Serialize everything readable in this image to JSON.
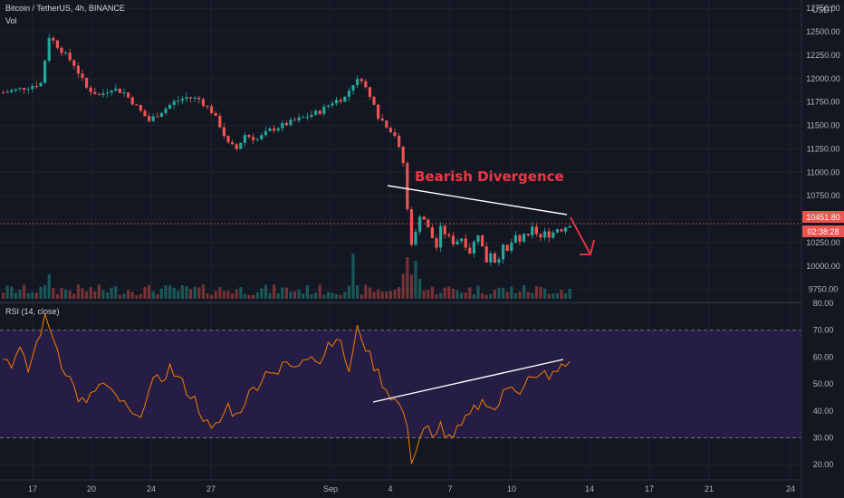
{
  "header": {
    "symbol": "Bitcoin / TetherUS, 4h, BINANCE",
    "vol_label": "Vol",
    "currency": "USDT"
  },
  "rsi": {
    "label": "RSI (14, close)"
  },
  "colors": {
    "background": "#131722",
    "up": "#26a69a",
    "down": "#ef5350",
    "rsi_line": "#f57c00",
    "rsi_band": "#2a1e4a",
    "annotation": "#f23645",
    "trendline": "#ffffff"
  },
  "chart_data": [
    {
      "type": "candlestick",
      "x_tick_labels": [
        "17",
        "20",
        "24",
        "27",
        "Sep",
        "4",
        "7",
        "10",
        "14",
        "17",
        "21",
        "24"
      ],
      "y_tick_labels": [
        "12750.00",
        "12500.00",
        "12250.00",
        "12000.00",
        "11750.00",
        "11500.00",
        "11250.00",
        "11000.00",
        "10750.00",
        "10500.00",
        "10250.00",
        "10000.00",
        "9750.00"
      ],
      "ylim": [
        9650,
        12800
      ],
      "last_price": "10451.80",
      "countdown": "02:38:28",
      "price_path": [
        [
          0,
          11850
        ],
        [
          5,
          11900
        ],
        [
          9,
          11950
        ],
        [
          11,
          12450
        ],
        [
          14,
          12300
        ],
        [
          17,
          12150
        ],
        [
          20,
          11900
        ],
        [
          23,
          11820
        ],
        [
          26,
          11900
        ],
        [
          29,
          11850
        ],
        [
          32,
          11700
        ],
        [
          35,
          11550
        ],
        [
          38,
          11650
        ],
        [
          41,
          11750
        ],
        [
          44,
          11800
        ],
        [
          47,
          11780
        ],
        [
          50,
          11650
        ],
        [
          52,
          11500
        ],
        [
          54,
          11300
        ],
        [
          56,
          11250
        ],
        [
          58,
          11400
        ],
        [
          61,
          11350
        ],
        [
          64,
          11450
        ],
        [
          67,
          11500
        ],
        [
          70,
          11550
        ],
        [
          73,
          11600
        ],
        [
          76,
          11650
        ],
        [
          79,
          11750
        ],
        [
          82,
          11800
        ],
        [
          84,
          11950
        ],
        [
          86,
          12000
        ],
        [
          88,
          11800
        ],
        [
          89,
          11750
        ],
        [
          90,
          11600
        ],
        [
          92,
          11500
        ],
        [
          94,
          11400
        ],
        [
          95,
          11250
        ],
        [
          96,
          11100
        ],
        [
          97,
          10600
        ],
        [
          98,
          10250
        ],
        [
          99,
          10350
        ],
        [
          100,
          10550
        ],
        [
          101,
          10500
        ],
        [
          102,
          10400
        ],
        [
          103,
          10300
        ],
        [
          104,
          10200
        ],
        [
          105,
          10400
        ],
        [
          106,
          10350
        ],
        [
          107,
          10300
        ],
        [
          108,
          10250
        ],
        [
          110,
          10300
        ],
        [
          112,
          10150
        ],
        [
          114,
          10350
        ],
        [
          115,
          10200
        ],
        [
          116,
          10050
        ],
        [
          117,
          10150
        ],
        [
          118,
          10050
        ],
        [
          119,
          10100
        ],
        [
          120,
          10200
        ],
        [
          121,
          10150
        ],
        [
          122,
          10250
        ],
        [
          123,
          10300
        ],
        [
          124,
          10250
        ],
        [
          125,
          10350
        ],
        [
          126,
          10300
        ],
        [
          127,
          10400
        ],
        [
          128,
          10350
        ],
        [
          129,
          10300
        ],
        [
          130,
          10350
        ],
        [
          131,
          10330
        ],
        [
          132,
          10360
        ],
        [
          133,
          10400
        ],
        [
          134,
          10390
        ],
        [
          135,
          10420
        ],
        [
          136,
          10451.8
        ]
      ],
      "annotations": [
        "Bearish Divergence"
      ]
    },
    {
      "type": "line",
      "series_label": "RSI (14, close)",
      "y_tick_labels": [
        "80.00",
        "70.00",
        "60.00",
        "50.00",
        "40.00",
        "30.00",
        "20.00"
      ],
      "ylim": [
        15,
        80
      ],
      "bands": [
        30,
        70
      ],
      "path": [
        [
          0,
          60
        ],
        [
          2,
          58
        ],
        [
          4,
          62
        ],
        [
          6,
          55
        ],
        [
          8,
          65
        ],
        [
          9,
          70
        ],
        [
          10,
          74
        ],
        [
          12,
          68
        ],
        [
          14,
          58
        ],
        [
          16,
          52
        ],
        [
          18,
          45
        ],
        [
          20,
          42
        ],
        [
          22,
          48
        ],
        [
          24,
          50
        ],
        [
          26,
          46
        ],
        [
          28,
          44
        ],
        [
          30,
          40
        ],
        [
          32,
          36
        ],
        [
          34,
          44
        ],
        [
          36,
          50
        ],
        [
          38,
          52
        ],
        [
          40,
          56
        ],
        [
          42,
          52
        ],
        [
          44,
          48
        ],
        [
          46,
          44
        ],
        [
          48,
          38
        ],
        [
          50,
          32
        ],
        [
          52,
          36
        ],
        [
          54,
          42
        ],
        [
          56,
          38
        ],
        [
          58,
          44
        ],
        [
          60,
          48
        ],
        [
          62,
          52
        ],
        [
          64,
          56
        ],
        [
          66,
          54
        ],
        [
          68,
          58
        ],
        [
          70,
          55
        ],
        [
          72,
          60
        ],
        [
          74,
          62
        ],
        [
          76,
          58
        ],
        [
          78,
          65
        ],
        [
          80,
          68
        ],
        [
          82,
          60
        ],
        [
          83,
          55
        ],
        [
          84,
          62
        ],
        [
          85,
          70
        ],
        [
          86,
          68
        ],
        [
          88,
          60
        ],
        [
          90,
          54
        ],
        [
          92,
          48
        ],
        [
          94,
          44
        ],
        [
          96,
          40
        ],
        [
          97,
          32
        ],
        [
          98,
          22
        ],
        [
          99,
          26
        ],
        [
          100,
          30
        ],
        [
          101,
          34
        ],
        [
          102,
          33
        ],
        [
          103,
          29
        ],
        [
          104,
          30
        ],
        [
          105,
          35
        ],
        [
          106,
          32
        ],
        [
          107,
          30
        ],
        [
          108,
          31
        ],
        [
          110,
          34
        ],
        [
          112,
          38
        ],
        [
          114,
          42
        ],
        [
          116,
          44
        ],
        [
          118,
          40
        ],
        [
          120,
          46
        ],
        [
          122,
          50
        ],
        [
          124,
          48
        ],
        [
          126,
          52
        ],
        [
          128,
          51
        ],
        [
          130,
          54
        ],
        [
          132,
          53
        ],
        [
          134,
          56
        ],
        [
          136,
          58
        ]
      ]
    }
  ]
}
